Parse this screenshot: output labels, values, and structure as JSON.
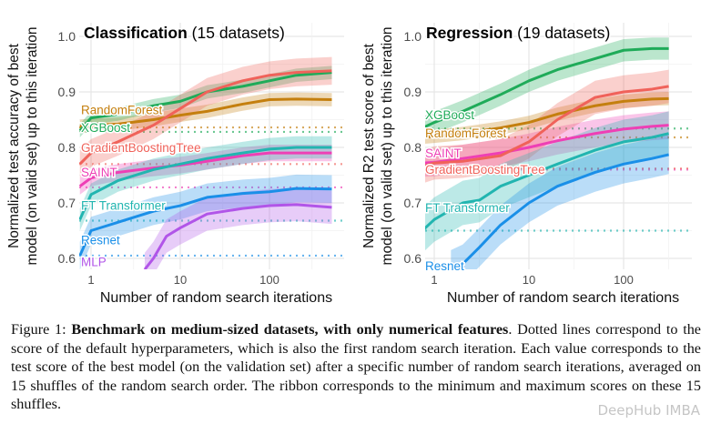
{
  "chart_data": [
    {
      "type": "line",
      "title": "Classification",
      "subtitle": "(15 datasets)",
      "xlabel": "Number of random search iterations",
      "ylabel": [
        "Normalized test accuracy of best",
        "model (on valid set) up to this iteration"
      ],
      "x_scale": "log",
      "xlim": [
        0.75,
        650
      ],
      "ylim": [
        0.58,
        1.02
      ],
      "xticks": [
        "1",
        "10",
        "100"
      ],
      "yticks": [
        "0.6",
        "0.7",
        "0.8",
        "0.9",
        "1.0"
      ],
      "grid": true,
      "legend": "inline labels at left",
      "series": [
        {
          "name": "RandomForest",
          "color": "#c47f0e",
          "default": 0.836,
          "spread": 0.012,
          "x": [
            0.75,
            1,
            2,
            5,
            10,
            20,
            50,
            100,
            200,
            500
          ],
          "y": [
            0.838,
            0.84,
            0.842,
            0.85,
            0.858,
            0.865,
            0.878,
            0.886,
            0.887,
            0.886
          ]
        },
        {
          "name": "XGBoost",
          "color": "#1fab59",
          "default": 0.828,
          "spread": 0.012,
          "x": [
            0.75,
            1,
            2,
            5,
            10,
            20,
            50,
            100,
            200,
            500
          ],
          "y": [
            0.83,
            0.853,
            0.86,
            0.875,
            0.883,
            0.9,
            0.91,
            0.92,
            0.93,
            0.935
          ]
        },
        {
          "name": "GradientBoostingTree",
          "color": "#f0625a",
          "default": 0.77,
          "spread": 0.025,
          "x": [
            0.75,
            1,
            2,
            5,
            10,
            20,
            50,
            100,
            200,
            500
          ],
          "y": [
            0.77,
            0.79,
            0.81,
            0.84,
            0.87,
            0.9,
            0.92,
            0.93,
            0.935,
            0.938
          ]
        },
        {
          "name": "SAINT",
          "color": "#ee3fb5",
          "default": 0.728,
          "spread": 0.015,
          "x": [
            0.75,
            1,
            2,
            5,
            10,
            20,
            50,
            100,
            200,
            500
          ],
          "y": [
            0.73,
            0.745,
            0.755,
            0.763,
            0.768,
            0.775,
            0.785,
            0.79,
            0.79,
            0.79
          ]
        },
        {
          "name": "FT Transformer",
          "color": "#22b5b0",
          "default": 0.668,
          "spread": 0.02,
          "x": [
            0.75,
            1,
            2,
            5,
            10,
            20,
            50,
            100,
            200,
            500
          ],
          "y": [
            0.67,
            0.715,
            0.74,
            0.76,
            0.77,
            0.78,
            0.79,
            0.797,
            0.8,
            0.8
          ]
        },
        {
          "name": "Resnet",
          "color": "#1a8fe8",
          "default": 0.605,
          "spread": 0.025,
          "x": [
            0.75,
            1,
            2,
            5,
            10,
            20,
            50,
            100,
            200,
            500
          ],
          "y": [
            0.605,
            0.65,
            0.665,
            0.685,
            0.695,
            0.71,
            0.717,
            0.72,
            0.726,
            0.725
          ]
        },
        {
          "name": "MLP",
          "color": "#b155e8",
          "spread": 0.03,
          "x": [
            4,
            5,
            7,
            10,
            20,
            50,
            100,
            200,
            500
          ],
          "y": [
            0.58,
            0.6,
            0.64,
            0.655,
            0.68,
            0.69,
            0.695,
            0.697,
            0.692
          ]
        }
      ]
    },
    {
      "type": "line",
      "title": "Regression",
      "subtitle": "(19 datasets)",
      "xlabel": "Number of random search iterations",
      "ylabel": [
        "Normalized R2 test score of best",
        "model (on valid set) up to this iteration"
      ],
      "x_scale": "log",
      "xlim": [
        0.75,
        650
      ],
      "ylim": [
        0.58,
        1.02
      ],
      "xticks": [
        "1",
        "10",
        "100"
      ],
      "yticks": [
        "0.6",
        "0.7",
        "0.8",
        "0.9",
        "1.0"
      ],
      "grid": true,
      "legend": "inline labels at left",
      "series": [
        {
          "name": "XGBoost",
          "color": "#1fab59",
          "default": 0.834,
          "spread": 0.02,
          "x": [
            0.75,
            1,
            2,
            5,
            10,
            20,
            50,
            100,
            200,
            300
          ],
          "y": [
            0.835,
            0.845,
            0.865,
            0.895,
            0.92,
            0.94,
            0.96,
            0.975,
            0.978,
            0.978
          ]
        },
        {
          "name": "RandomForest",
          "color": "#c47f0e",
          "default": 0.818,
          "spread": 0.012,
          "x": [
            0.75,
            1,
            2,
            5,
            10,
            20,
            50,
            100,
            200,
            300
          ],
          "y": [
            0.818,
            0.82,
            0.825,
            0.835,
            0.845,
            0.86,
            0.875,
            0.883,
            0.887,
            0.888
          ]
        },
        {
          "name": "SAINT",
          "color": "#ee3fb5",
          "default": 0.76,
          "spread": 0.025,
          "x": [
            0.75,
            1,
            2,
            5,
            10,
            20,
            50,
            100,
            200,
            300
          ],
          "y": [
            0.772,
            0.773,
            0.78,
            0.79,
            0.8,
            0.812,
            0.825,
            0.833,
            0.838,
            0.84
          ]
        },
        {
          "name": "GradientBoostingTree",
          "color": "#f0625a",
          "default": 0.762,
          "spread": 0.03,
          "x": [
            0.75,
            1,
            2,
            5,
            10,
            20,
            50,
            100,
            200,
            300
          ],
          "y": [
            0.765,
            0.772,
            0.775,
            0.785,
            0.81,
            0.85,
            0.89,
            0.9,
            0.905,
            0.91
          ]
        },
        {
          "name": "FT Transformer",
          "color": "#22b5b0",
          "default": 0.65,
          "spread": 0.04,
          "x": [
            0.75,
            1,
            2,
            3,
            5,
            10,
            20,
            50,
            100,
            200,
            300
          ],
          "y": [
            0.65,
            0.67,
            0.7,
            0.705,
            0.73,
            0.75,
            0.77,
            0.795,
            0.81,
            0.818,
            0.825
          ]
        },
        {
          "name": "Resnet",
          "color": "#1a8fe8",
          "spread": 0.035,
          "x": [
            1.5,
            2,
            3,
            5,
            10,
            20,
            50,
            100,
            200,
            300
          ],
          "y": [
            0.58,
            0.59,
            0.62,
            0.66,
            0.7,
            0.73,
            0.755,
            0.77,
            0.78,
            0.787
          ]
        }
      ]
    }
  ],
  "caption": {
    "label": "Figure 1:",
    "bold": "Benchmark on medium-sized datasets, with only numerical features",
    "text": ". Dotted lines correspond to the score of the default hyperparameters, which is also the first random search iteration. Each value corresponds to the test score of the best model (on the validation set) after a specific number of random search iterations, averaged on 15 shuffles of the random search order. The ribbon corresponds to the minimum and maximum scores on these 15 shuffles."
  },
  "watermark": "DeepHub IMBA"
}
